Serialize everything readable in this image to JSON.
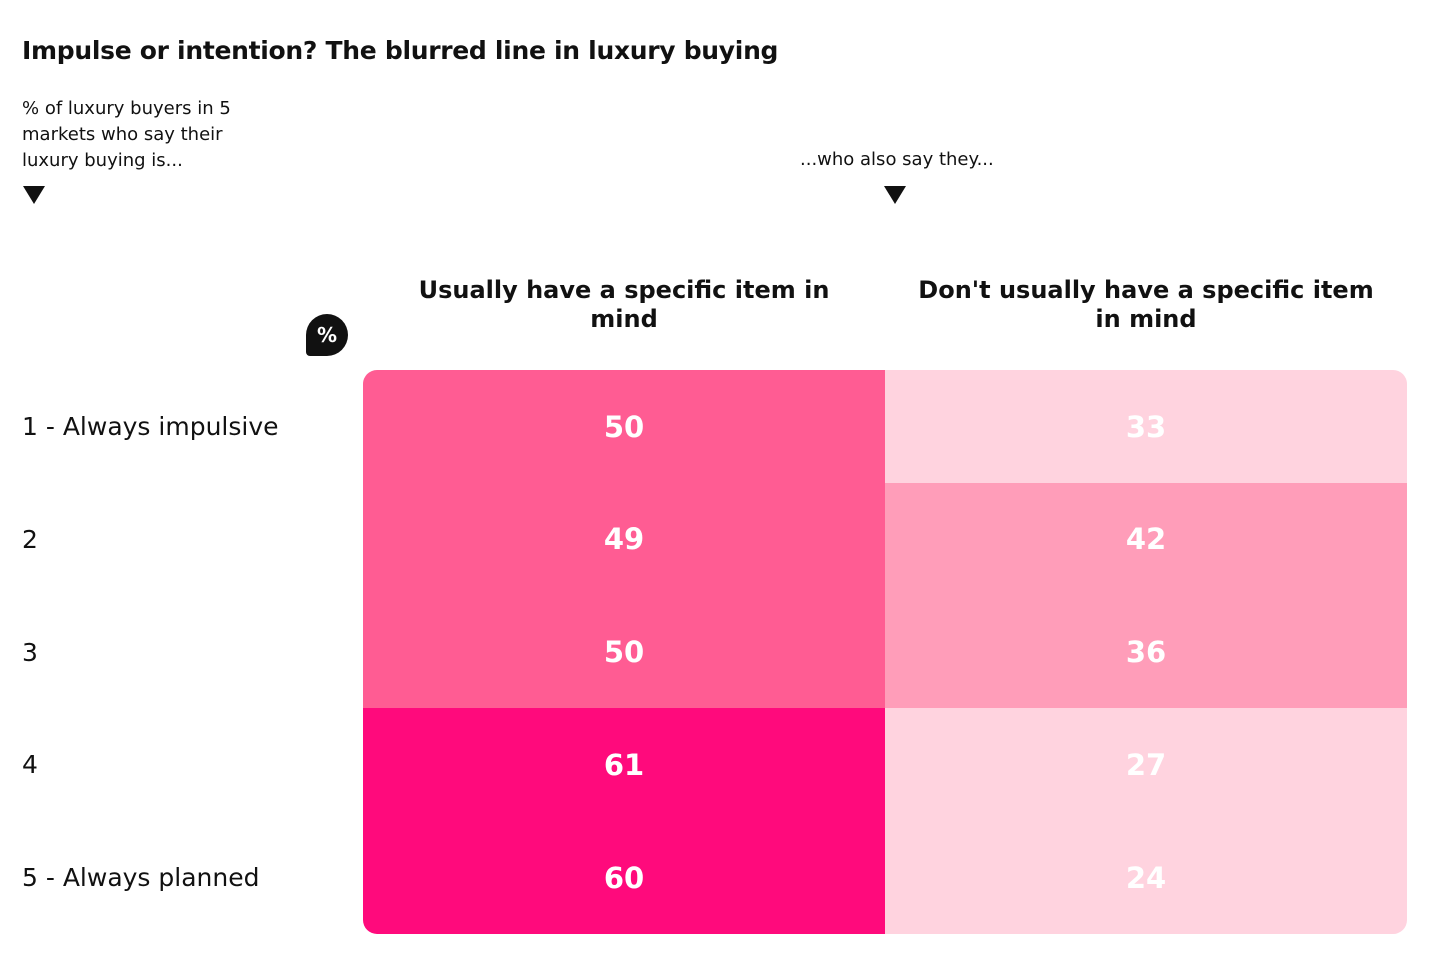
{
  "title": "Impulse or intention? The blurred line in luxury buying",
  "subtitle_left": "% of luxury buyers in 5 markets who say their luxury buying is...",
  "subtitle_right": "...who also say they...",
  "percent_badge": "%",
  "colors": {
    "c61_60": "#ff0a7c",
    "c49_50": "#ff5c93",
    "c36_42": "#ff9db9",
    "c24_33": "#ffd3df"
  },
  "chart_data": {
    "type": "heatmap",
    "title": "Impulse or intention? The blurred line in luxury buying",
    "rows": [
      "1 - Always impulsive",
      "2",
      "3",
      "4",
      "5 - Always planned"
    ],
    "columns": [
      "Usually have a specific item in mind",
      "Don't usually have a specific item in mind"
    ],
    "values": [
      [
        50,
        33
      ],
      [
        49,
        42
      ],
      [
        50,
        36
      ],
      [
        61,
        27
      ],
      [
        60,
        24
      ]
    ],
    "unit": "%"
  }
}
